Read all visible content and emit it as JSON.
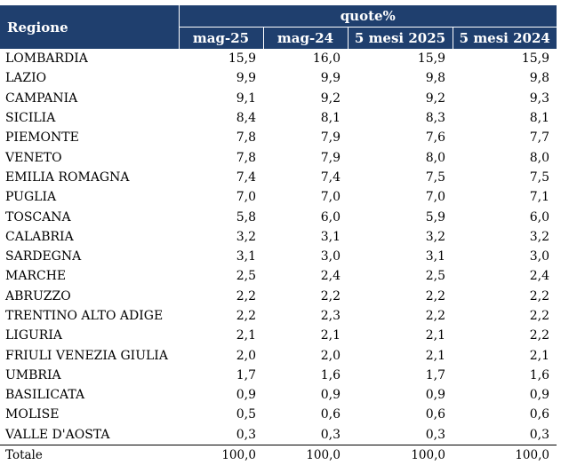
{
  "header": {
    "region_label": "Regione",
    "group_label": "quote%",
    "columns": [
      "mag-25",
      "mag-24",
      "5 mesi 2025",
      "5 mesi 2024"
    ]
  },
  "rows": [
    {
      "name": "LOMBARDIA",
      "values": [
        "15,9",
        "16,0",
        "15,9",
        "15,9"
      ]
    },
    {
      "name": "LAZIO",
      "values": [
        "9,9",
        "9,9",
        "9,8",
        "9,8"
      ]
    },
    {
      "name": "CAMPANIA",
      "values": [
        "9,1",
        "9,2",
        "9,2",
        "9,3"
      ]
    },
    {
      "name": "SICILIA",
      "values": [
        "8,4",
        "8,1",
        "8,3",
        "8,1"
      ]
    },
    {
      "name": "PIEMONTE",
      "values": [
        "7,8",
        "7,9",
        "7,6",
        "7,7"
      ]
    },
    {
      "name": "VENETO",
      "values": [
        "7,8",
        "7,9",
        "8,0",
        "8,0"
      ]
    },
    {
      "name": "EMILIA ROMAGNA",
      "values": [
        "7,4",
        "7,4",
        "7,5",
        "7,5"
      ]
    },
    {
      "name": "PUGLIA",
      "values": [
        "7,0",
        "7,0",
        "7,0",
        "7,1"
      ]
    },
    {
      "name": "TOSCANA",
      "values": [
        "5,8",
        "6,0",
        "5,9",
        "6,0"
      ]
    },
    {
      "name": "CALABRIA",
      "values": [
        "3,2",
        "3,1",
        "3,2",
        "3,2"
      ]
    },
    {
      "name": "SARDEGNA",
      "values": [
        "3,1",
        "3,0",
        "3,1",
        "3,0"
      ]
    },
    {
      "name": "MARCHE",
      "values": [
        "2,5",
        "2,4",
        "2,5",
        "2,4"
      ]
    },
    {
      "name": "ABRUZZO",
      "values": [
        "2,2",
        "2,2",
        "2,2",
        "2,2"
      ]
    },
    {
      "name": "TRENTINO ALTO ADIGE",
      "values": [
        "2,2",
        "2,3",
        "2,2",
        "2,2"
      ]
    },
    {
      "name": "LIGURIA",
      "values": [
        "2,1",
        "2,1",
        "2,1",
        "2,2"
      ]
    },
    {
      "name": "FRIULI VENEZIA GIULIA",
      "values": [
        "2,0",
        "2,0",
        "2,1",
        "2,1"
      ]
    },
    {
      "name": "UMBRIA",
      "values": [
        "1,7",
        "1,6",
        "1,7",
        "1,6"
      ]
    },
    {
      "name": "BASILICATA",
      "values": [
        "0,9",
        "0,9",
        "0,9",
        "0,9"
      ]
    },
    {
      "name": "MOLISE",
      "values": [
        "0,5",
        "0,6",
        "0,6",
        "0,6"
      ]
    },
    {
      "name": "VALLE D'AOSTA",
      "values": [
        "0,3",
        "0,3",
        "0,3",
        "0,3"
      ]
    }
  ],
  "total": {
    "name": "Totale",
    "values": [
      "100,0",
      "100,0",
      "100,0",
      "100,0"
    ]
  },
  "colors": {
    "header_bg": "#1f3f6e",
    "header_text": "#ffffff",
    "text": "#000000"
  }
}
